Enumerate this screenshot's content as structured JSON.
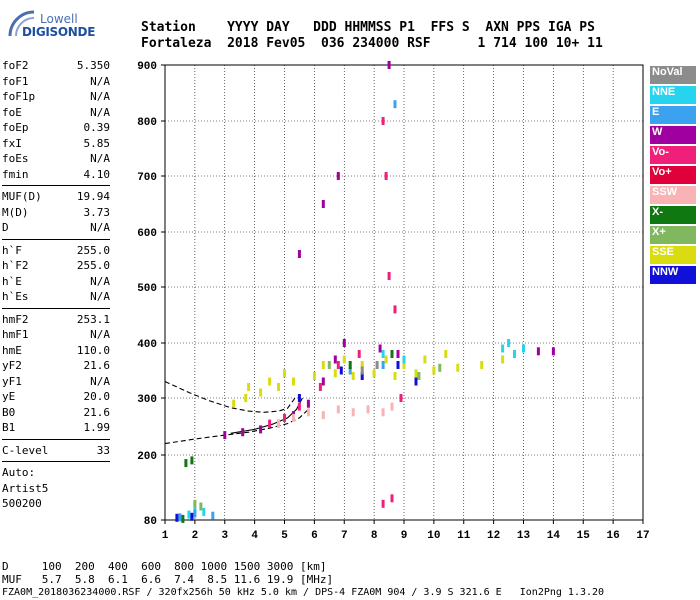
{
  "logo": {
    "line1": "Lowell",
    "line2": "DIGISONDE"
  },
  "header": {
    "row1": "Station    YYYY DAY   DDD HHMMSS P1  FFS S  AXN PPS IGA PS",
    "row2": "Fortaleza  2018 Fev05  036 234000 RSF      1 714 100 10+ 11"
  },
  "params": [
    [
      {
        "k": "foF2",
        "v": "5.350"
      },
      {
        "k": "foF1",
        "v": "N/A"
      },
      {
        "k": "foF1p",
        "v": "N/A"
      },
      {
        "k": "foE",
        "v": "N/A"
      },
      {
        "k": "foEp",
        "v": "0.39"
      },
      {
        "k": "fxI",
        "v": "5.85"
      },
      {
        "k": "foEs",
        "v": "N/A"
      },
      {
        "k": "fmin",
        "v": "4.10"
      }
    ],
    [
      {
        "k": "MUF(D)",
        "v": "19.94"
      },
      {
        "k": "M(D)",
        "v": "3.73"
      },
      {
        "k": "D",
        "v": "N/A"
      }
    ],
    [
      {
        "k": "h`F",
        "v": "255.0"
      },
      {
        "k": "h`F2",
        "v": "255.0"
      },
      {
        "k": "h`E",
        "v": "N/A"
      },
      {
        "k": "h`Es",
        "v": "N/A"
      }
    ],
    [
      {
        "k": "hmF2",
        "v": "253.1"
      },
      {
        "k": "hmF1",
        "v": "N/A"
      },
      {
        "k": "hmE",
        "v": "110.0"
      },
      {
        "k": "yF2",
        "v": "21.6"
      },
      {
        "k": "yF1",
        "v": "N/A"
      },
      {
        "k": "yE",
        "v": "20.0"
      },
      {
        "k": "B0",
        "v": "21.6"
      },
      {
        "k": "B1",
        "v": "1.99"
      }
    ],
    [
      {
        "k": "C-level",
        "v": "33"
      }
    ]
  ],
  "autoscale": {
    "line1": "Auto:",
    "line2": "Artist5",
    "line3": "500200"
  },
  "legend": [
    {
      "label": "NoVal",
      "color": "#8c8c8c"
    },
    {
      "label": "NNE",
      "color": "#26d4f0"
    },
    {
      "label": "E",
      "color": "#3aa2ee"
    },
    {
      "label": "W",
      "color": "#a000a0"
    },
    {
      "label": "Vo-",
      "color": "#f0207a"
    },
    {
      "label": "Vo+",
      "color": "#e0003c"
    },
    {
      "label": "SSW",
      "color": "#f8b4b4"
    },
    {
      "label": "X-",
      "color": "#107810"
    },
    {
      "label": "X+",
      "color": "#80b860"
    },
    {
      "label": "SSE",
      "color": "#d8dc10"
    },
    {
      "label": "NNW",
      "color": "#1010d8"
    }
  ],
  "footer": {
    "d_row": "D     100  200  400  600  800 1000 1500 3000 [km]",
    "muf_row": "MUF   5.7  5.8  6.1  6.6  7.4  8.5 11.6 19.9 [MHz]",
    "file_row": "FZA0M_2018036234000.RSF / 320fx256h 50 kHz 5.0 km / DPS-4 FZA0M 904 / 3.9 S 321.6 E   Ion2Png 1.3.20"
  },
  "chart_data": {
    "type": "scatter",
    "x_ticks": [
      "1",
      "2",
      "3",
      "4",
      "5",
      "6",
      "7",
      "8",
      "9",
      "10",
      "11",
      "12",
      "13",
      "14",
      "15",
      "16",
      "17"
    ],
    "y_ticks": [
      "80",
      "200",
      "300",
      "400",
      "500",
      "600",
      "700",
      "800",
      "900"
    ],
    "xlim": [
      1,
      17
    ],
    "y_axis": "nonlinear ionogram height (km); ticks 80,200..900",
    "grid": true,
    "series": [
      {
        "name": "SSE",
        "color": "#d8dc10",
        "points": [
          [
            3.3,
            290
          ],
          [
            3.7,
            300
          ],
          [
            4.2,
            310
          ],
          [
            4.8,
            320
          ],
          [
            5.3,
            330
          ],
          [
            6.0,
            340
          ],
          [
            6.7,
            345
          ],
          [
            7.3,
            340
          ],
          [
            8.0,
            345
          ],
          [
            8.7,
            340
          ],
          [
            9.4,
            345
          ],
          [
            10.0,
            350
          ],
          [
            10.8,
            355
          ],
          [
            11.6,
            360
          ],
          [
            12.3,
            370
          ],
          [
            3.8,
            320
          ],
          [
            4.5,
            330
          ],
          [
            5.0,
            345
          ],
          [
            6.3,
            360
          ],
          [
            7.0,
            370
          ],
          [
            7.6,
            360
          ],
          [
            8.4,
            370
          ],
          [
            9.0,
            360
          ],
          [
            9.7,
            370
          ],
          [
            10.4,
            380
          ]
        ]
      },
      {
        "name": "W",
        "color": "#a000a0",
        "points": [
          [
            3.0,
            235
          ],
          [
            3.6,
            240
          ],
          [
            4.2,
            245
          ],
          [
            4.8,
            255
          ],
          [
            5.3,
            270
          ],
          [
            5.8,
            290
          ],
          [
            6.3,
            330
          ],
          [
            6.7,
            370
          ],
          [
            7.0,
            400
          ],
          [
            8.2,
            390
          ],
          [
            8.8,
            380
          ],
          [
            5.5,
            560
          ],
          [
            6.3,
            650
          ],
          [
            6.8,
            700
          ],
          [
            13.5,
            385
          ],
          [
            14.0,
            385
          ],
          [
            8.5,
            900
          ]
        ]
      },
      {
        "name": "SSW",
        "color": "#f8b4b4",
        "points": [
          [
            4.8,
            255
          ],
          [
            5.3,
            265
          ],
          [
            5.8,
            275
          ],
          [
            6.3,
            270
          ],
          [
            6.8,
            280
          ],
          [
            7.3,
            275
          ],
          [
            7.8,
            280
          ],
          [
            8.3,
            275
          ],
          [
            8.6,
            285
          ]
        ]
      },
      {
        "name": "Vo-",
        "color": "#f0207a",
        "points": [
          [
            4.5,
            255
          ],
          [
            5.0,
            265
          ],
          [
            5.5,
            285
          ],
          [
            6.2,
            320
          ],
          [
            6.8,
            360
          ],
          [
            7.5,
            380
          ],
          [
            8.3,
            800
          ],
          [
            8.4,
            700
          ],
          [
            8.5,
            520
          ],
          [
            8.7,
            460
          ],
          [
            8.9,
            300
          ],
          [
            8.3,
            110
          ],
          [
            8.6,
            120
          ]
        ]
      },
      {
        "name": "NNE",
        "color": "#26d4f0",
        "points": [
          [
            12.5,
            400
          ],
          [
            12.7,
            380
          ],
          [
            13.0,
            390
          ],
          [
            12.3,
            390
          ],
          [
            1.8,
            90
          ],
          [
            2.0,
            100
          ],
          [
            2.3,
            95
          ],
          [
            8.3,
            380
          ],
          [
            9.0,
            370
          ]
        ]
      },
      {
        "name": "E",
        "color": "#3aa2ee",
        "points": [
          [
            1.5,
            85
          ],
          [
            2.0,
            92
          ],
          [
            2.6,
            88
          ],
          [
            8.7,
            830
          ],
          [
            8.3,
            360
          ],
          [
            7.2,
            350
          ]
        ]
      },
      {
        "name": "NNW",
        "color": "#1010d8",
        "points": [
          [
            1.4,
            84
          ],
          [
            1.9,
            86
          ],
          [
            6.9,
            350
          ],
          [
            7.6,
            340
          ],
          [
            8.8,
            360
          ],
          [
            9.4,
            330
          ],
          [
            5.5,
            300
          ]
        ]
      },
      {
        "name": "X-",
        "color": "#107810",
        "points": [
          [
            1.7,
            185
          ],
          [
            1.9,
            190
          ],
          [
            1.6,
            82
          ],
          [
            7.2,
            360
          ],
          [
            8.6,
            380
          ]
        ]
      },
      {
        "name": "X+",
        "color": "#80b860",
        "points": [
          [
            2.0,
            110
          ],
          [
            2.2,
            105
          ],
          [
            6.5,
            360
          ],
          [
            9.5,
            340
          ],
          [
            10.2,
            355
          ]
        ]
      },
      {
        "name": "NoVal",
        "color": "#8c8c8c",
        "points": [
          [
            7.6,
            350
          ],
          [
            8.1,
            360
          ]
        ]
      }
    ],
    "curves": [
      {
        "name": "profile-upper",
        "style": "dashed",
        "points": [
          [
            1.0,
            330
          ],
          [
            1.8,
            310
          ],
          [
            2.5,
            295
          ],
          [
            3.2,
            283
          ],
          [
            3.8,
            277
          ],
          [
            4.3,
            275
          ],
          [
            4.8,
            277
          ],
          [
            5.1,
            282
          ],
          [
            5.35,
            300
          ]
        ]
      },
      {
        "name": "profile-lower",
        "style": "dashed",
        "points": [
          [
            1.0,
            220
          ],
          [
            2.0,
            228
          ],
          [
            3.0,
            235
          ],
          [
            3.8,
            240
          ],
          [
            4.5,
            247
          ],
          [
            5.1,
            255
          ],
          [
            5.5,
            265
          ],
          [
            5.8,
            280
          ]
        ]
      },
      {
        "name": "trace-solid",
        "style": "solid",
        "points": [
          [
            3.2,
            238
          ],
          [
            4.0,
            245
          ],
          [
            4.6,
            254
          ],
          [
            5.1,
            265
          ],
          [
            5.4,
            280
          ],
          [
            5.6,
            300
          ]
        ]
      }
    ]
  }
}
